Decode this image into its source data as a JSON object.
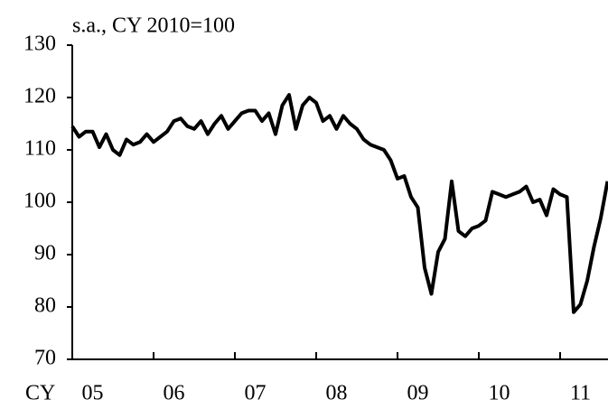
{
  "chart_data": {
    "type": "line",
    "subtitle": "s.a., CY 2010=100",
    "xlabel": "CY",
    "categories": [
      null,
      null,
      null,
      "05",
      null,
      null,
      null,
      null,
      null,
      null,
      null,
      null,
      null,
      null,
      null,
      "06",
      null,
      null,
      null,
      null,
      null,
      null,
      null,
      null,
      null,
      null,
      null,
      "07",
      null,
      null,
      null,
      null,
      null,
      null,
      null,
      null,
      null,
      null,
      null,
      "08",
      null,
      null,
      null,
      null,
      null,
      null,
      null,
      null,
      null,
      null,
      null,
      "09",
      null,
      null,
      null,
      null,
      null,
      null,
      null,
      null,
      null,
      null,
      null,
      "10",
      null,
      null,
      null,
      null,
      null,
      null,
      null,
      null,
      null,
      null,
      null,
      "11",
      null,
      null,
      null,
      null
    ],
    "values": [
      114.5,
      112.5,
      113.5,
      113.5,
      110.5,
      113,
      110,
      109,
      112,
      111,
      111.5,
      113,
      111.5,
      112.5,
      113.5,
      115.5,
      116,
      114.5,
      114,
      115.5,
      113,
      115,
      116.5,
      114,
      115.5,
      117,
      117.5,
      117.5,
      115.5,
      117,
      113,
      118.5,
      120.5,
      114,
      118.5,
      120,
      119,
      115.5,
      116.5,
      114,
      116.5,
      115,
      114,
      112,
      111,
      110.5,
      110,
      108,
      104.5,
      105,
      101,
      99,
      87.5,
      82.5,
      90.5,
      93,
      104,
      94.5,
      93.5,
      95,
      95.5,
      96.5,
      102,
      101.5,
      101,
      101.5,
      102,
      103,
      100,
      100.5,
      97.5,
      102.5,
      101.5,
      101,
      79,
      80.5,
      85,
      91.5,
      97,
      104
    ],
    "color": "#000000",
    "ylim": [
      70,
      130
    ],
    "yticks": [
      70,
      80,
      90,
      100,
      110,
      120,
      130
    ]
  }
}
